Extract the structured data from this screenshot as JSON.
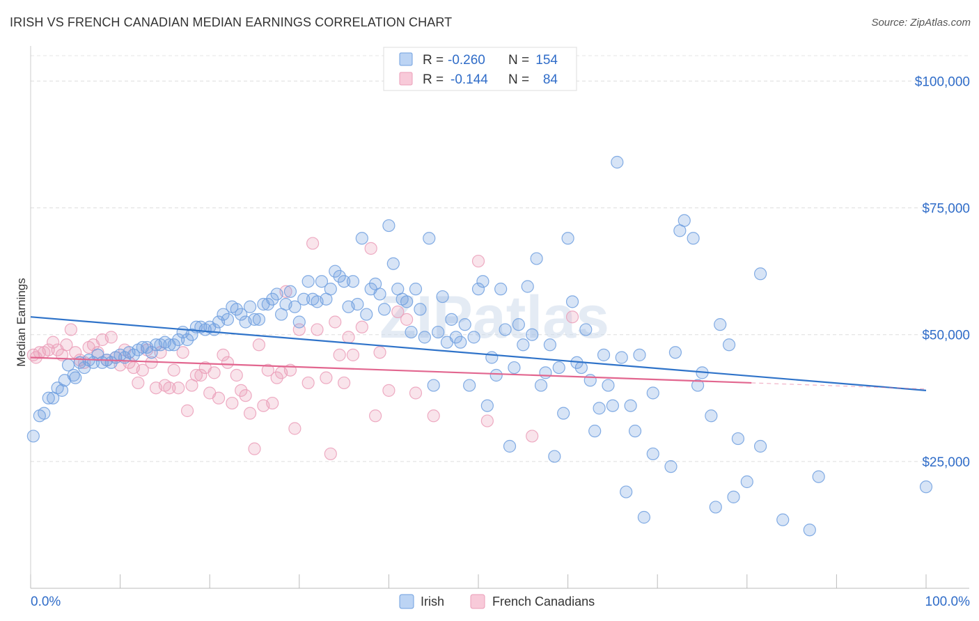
{
  "header": {
    "title": "IRISH VS FRENCH CANADIAN MEDIAN EARNINGS CORRELATION CHART",
    "source": "Source: ZipAtlas.com"
  },
  "watermark": "ZIPatlas",
  "legend_box": {
    "rows": [
      {
        "r_label": "R =",
        "r_value": "-0.260",
        "n_label": "N =",
        "n_value": "154"
      },
      {
        "r_label": "R =",
        "r_value": "-0.144",
        "n_label": "N =",
        "n_value": "84"
      }
    ]
  },
  "colors": {
    "irish": "#6f9fdf",
    "irish_line": "#2f73c9",
    "french": "#eb9db8",
    "french_line": "#e2668f",
    "value_text": "#2f6cc8"
  },
  "chart_data": {
    "type": "scatter",
    "title": "IRISH VS FRENCH CANADIAN MEDIAN EARNINGS CORRELATION CHART",
    "xlabel": "",
    "ylabel": "Median Earnings",
    "xlim": [
      0,
      100
    ],
    "ylim": [
      0,
      105000
    ],
    "x_tick_labels": [
      "0.0%",
      "100.0%"
    ],
    "y_ticks": [
      25000,
      50000,
      75000,
      100000
    ],
    "y_tick_labels": [
      "$25,000",
      "$50,000",
      "$75,000",
      "$100,000"
    ],
    "grid": true,
    "legend_position": "bottom",
    "series": [
      {
        "name": "Irish",
        "r": -0.26,
        "n": 154,
        "trend": {
          "x": [
            0,
            100
          ],
          "y": [
            53500,
            39000
          ]
        },
        "points": [
          [
            0.3,
            30000
          ],
          [
            1.0,
            34000
          ],
          [
            1.5,
            34500
          ],
          [
            2.0,
            37500
          ],
          [
            2.5,
            37500
          ],
          [
            3.0,
            39500
          ],
          [
            3.5,
            39000
          ],
          [
            3.8,
            41000
          ],
          [
            4.2,
            44000
          ],
          [
            4.8,
            42000
          ],
          [
            5.0,
            41500
          ],
          [
            5.5,
            44500
          ],
          [
            6.0,
            43500
          ],
          [
            6.5,
            45000
          ],
          [
            7.0,
            44500
          ],
          [
            7.5,
            46000
          ],
          [
            8.0,
            44500
          ],
          [
            8.5,
            45000
          ],
          [
            9.0,
            44500
          ],
          [
            9.5,
            45500
          ],
          [
            10.0,
            46000
          ],
          [
            10.5,
            45500
          ],
          [
            11.0,
            46500
          ],
          [
            11.5,
            46000
          ],
          [
            12.0,
            47000
          ],
          [
            12.5,
            47500
          ],
          [
            13.0,
            47500
          ],
          [
            13.5,
            46500
          ],
          [
            14.0,
            48000
          ],
          [
            14.5,
            48000
          ],
          [
            15.0,
            48500
          ],
          [
            15.5,
            48000
          ],
          [
            16.0,
            48000
          ],
          [
            16.5,
            49000
          ],
          [
            17.0,
            50500
          ],
          [
            17.5,
            49000
          ],
          [
            18.0,
            50000
          ],
          [
            18.5,
            51500
          ],
          [
            19.0,
            51500
          ],
          [
            19.5,
            51000
          ],
          [
            20.0,
            51500
          ],
          [
            20.5,
            51000
          ],
          [
            21.0,
            52500
          ],
          [
            21.5,
            54000
          ],
          [
            22.0,
            53000
          ],
          [
            22.5,
            55500
          ],
          [
            23.0,
            55000
          ],
          [
            23.5,
            54000
          ],
          [
            24.0,
            52500
          ],
          [
            24.5,
            55500
          ],
          [
            25.0,
            53000
          ],
          [
            25.5,
            53000
          ],
          [
            26.0,
            56000
          ],
          [
            26.5,
            56000
          ],
          [
            27.0,
            57000
          ],
          [
            27.5,
            58000
          ],
          [
            28.0,
            54000
          ],
          [
            28.5,
            56000
          ],
          [
            29.0,
            58500
          ],
          [
            29.5,
            55500
          ],
          [
            30.0,
            52500
          ],
          [
            30.5,
            57000
          ],
          [
            31.0,
            60500
          ],
          [
            31.5,
            57000
          ],
          [
            32.0,
            56500
          ],
          [
            32.5,
            60500
          ],
          [
            33.0,
            57000
          ],
          [
            33.5,
            59000
          ],
          [
            34.0,
            62500
          ],
          [
            34.5,
            61500
          ],
          [
            35.0,
            60500
          ],
          [
            35.5,
            55500
          ],
          [
            36.0,
            60500
          ],
          [
            36.5,
            56000
          ],
          [
            37.0,
            69000
          ],
          [
            37.5,
            54000
          ],
          [
            38.0,
            59000
          ],
          [
            38.5,
            60000
          ],
          [
            39.0,
            58000
          ],
          [
            39.5,
            55000
          ],
          [
            40.0,
            71500
          ],
          [
            40.5,
            64000
          ],
          [
            41.0,
            59000
          ],
          [
            41.5,
            57000
          ],
          [
            42.0,
            56500
          ],
          [
            42.5,
            50500
          ],
          [
            43.0,
            59000
          ],
          [
            43.5,
            55000
          ],
          [
            44.0,
            49500
          ],
          [
            44.5,
            69000
          ],
          [
            45.0,
            40000
          ],
          [
            45.5,
            50500
          ],
          [
            46.0,
            57500
          ],
          [
            46.5,
            48500
          ],
          [
            47.0,
            53000
          ],
          [
            47.5,
            49500
          ],
          [
            48.0,
            48500
          ],
          [
            48.5,
            52000
          ],
          [
            49.0,
            40000
          ],
          [
            49.5,
            49500
          ],
          [
            50.0,
            59000
          ],
          [
            50.5,
            60500
          ],
          [
            51.0,
            36000
          ],
          [
            51.5,
            45500
          ],
          [
            52.0,
            42000
          ],
          [
            52.5,
            59000
          ],
          [
            53.0,
            51000
          ],
          [
            53.5,
            28000
          ],
          [
            54.0,
            43500
          ],
          [
            54.5,
            52000
          ],
          [
            55.0,
            48000
          ],
          [
            55.5,
            59500
          ],
          [
            56.0,
            50000
          ],
          [
            56.5,
            65000
          ],
          [
            57.0,
            40000
          ],
          [
            57.5,
            42500
          ],
          [
            58.0,
            48000
          ],
          [
            58.5,
            26000
          ],
          [
            59.0,
            43500
          ],
          [
            59.5,
            34500
          ],
          [
            60.0,
            69000
          ],
          [
            60.5,
            56500
          ],
          [
            61.0,
            44500
          ],
          [
            61.5,
            43500
          ],
          [
            62.0,
            51000
          ],
          [
            62.5,
            41000
          ],
          [
            63.0,
            31000
          ],
          [
            63.5,
            35500
          ],
          [
            64.0,
            46000
          ],
          [
            64.5,
            40000
          ],
          [
            65.0,
            36000
          ],
          [
            65.5,
            84000
          ],
          [
            66.0,
            45500
          ],
          [
            66.5,
            19000
          ],
          [
            67.0,
            36000
          ],
          [
            67.5,
            31000
          ],
          [
            68.0,
            46000
          ],
          [
            68.5,
            14000
          ],
          [
            69.5,
            26500
          ],
          [
            69.5,
            38500
          ],
          [
            71.5,
            24000
          ],
          [
            72.0,
            46500
          ],
          [
            72.5,
            70500
          ],
          [
            73.0,
            72500
          ],
          [
            74.0,
            69000
          ],
          [
            74.5,
            40000
          ],
          [
            75.0,
            42500
          ],
          [
            76.0,
            34000
          ],
          [
            76.5,
            16000
          ],
          [
            77.0,
            52000
          ],
          [
            78.0,
            48000
          ],
          [
            78.5,
            18000
          ],
          [
            79.0,
            29500
          ],
          [
            80.0,
            21000
          ],
          [
            81.5,
            62000
          ],
          [
            81.5,
            28000
          ],
          [
            84.0,
            13500
          ],
          [
            87.0,
            11500
          ],
          [
            88.0,
            22000
          ],
          [
            100.0,
            20000
          ]
        ]
      },
      {
        "name": "French Canadians",
        "r": -0.144,
        "n": 84,
        "trend": {
          "x": [
            0,
            80.5
          ],
          "y": [
            45500,
            40500
          ]
        },
        "points": [
          [
            0.3,
            46000
          ],
          [
            0.6,
            45500
          ],
          [
            1.0,
            46500
          ],
          [
            1.5,
            46500
          ],
          [
            2.0,
            47000
          ],
          [
            2.5,
            48500
          ],
          [
            3.0,
            47000
          ],
          [
            3.5,
            46000
          ],
          [
            4.0,
            48000
          ],
          [
            4.5,
            51000
          ],
          [
            5.0,
            46500
          ],
          [
            5.5,
            45000
          ],
          [
            6.0,
            44500
          ],
          [
            6.5,
            47500
          ],
          [
            7.0,
            48000
          ],
          [
            7.5,
            46500
          ],
          [
            8.0,
            49000
          ],
          [
            8.5,
            45000
          ],
          [
            9.0,
            49500
          ],
          [
            9.5,
            45500
          ],
          [
            10.0,
            44000
          ],
          [
            10.5,
            47000
          ],
          [
            11.0,
            44500
          ],
          [
            11.5,
            43500
          ],
          [
            12.0,
            40500
          ],
          [
            12.5,
            43000
          ],
          [
            13.0,
            47000
          ],
          [
            13.5,
            44500
          ],
          [
            14.0,
            39500
          ],
          [
            14.5,
            46500
          ],
          [
            15.0,
            40000
          ],
          [
            15.5,
            39500
          ],
          [
            16.0,
            43000
          ],
          [
            16.5,
            39500
          ],
          [
            17.0,
            46500
          ],
          [
            17.5,
            35000
          ],
          [
            18.0,
            40000
          ],
          [
            18.5,
            42000
          ],
          [
            19.0,
            42000
          ],
          [
            19.5,
            43500
          ],
          [
            20.0,
            38500
          ],
          [
            20.5,
            42500
          ],
          [
            21.0,
            37500
          ],
          [
            21.5,
            46000
          ],
          [
            22.0,
            44500
          ],
          [
            22.5,
            36500
          ],
          [
            23.0,
            42000
          ],
          [
            23.5,
            39000
          ],
          [
            24.0,
            38000
          ],
          [
            24.5,
            34500
          ],
          [
            25.0,
            27500
          ],
          [
            25.5,
            48000
          ],
          [
            26.0,
            36000
          ],
          [
            26.5,
            43000
          ],
          [
            27.0,
            36500
          ],
          [
            27.5,
            41500
          ],
          [
            28.0,
            42500
          ],
          [
            28.5,
            58500
          ],
          [
            29.0,
            43000
          ],
          [
            29.5,
            31500
          ],
          [
            30.0,
            51000
          ],
          [
            31.0,
            40500
          ],
          [
            31.5,
            68000
          ],
          [
            32.0,
            51000
          ],
          [
            33.0,
            41500
          ],
          [
            33.5,
            26500
          ],
          [
            34.0,
            52500
          ],
          [
            34.5,
            46000
          ],
          [
            35.0,
            40500
          ],
          [
            35.5,
            49500
          ],
          [
            36.0,
            46000
          ],
          [
            37.0,
            51500
          ],
          [
            38.0,
            67000
          ],
          [
            38.5,
            34000
          ],
          [
            39.0,
            46500
          ],
          [
            40.0,
            39000
          ],
          [
            41.0,
            54500
          ],
          [
            42.0,
            53000
          ],
          [
            43.0,
            38500
          ],
          [
            45.0,
            34000
          ],
          [
            50.0,
            64500
          ],
          [
            51.0,
            33000
          ],
          [
            56.0,
            30000
          ],
          [
            60.5,
            53500
          ]
        ]
      }
    ]
  },
  "bottom_legend": {
    "items": [
      {
        "label": "Irish"
      },
      {
        "label": "French Canadians"
      }
    ]
  }
}
